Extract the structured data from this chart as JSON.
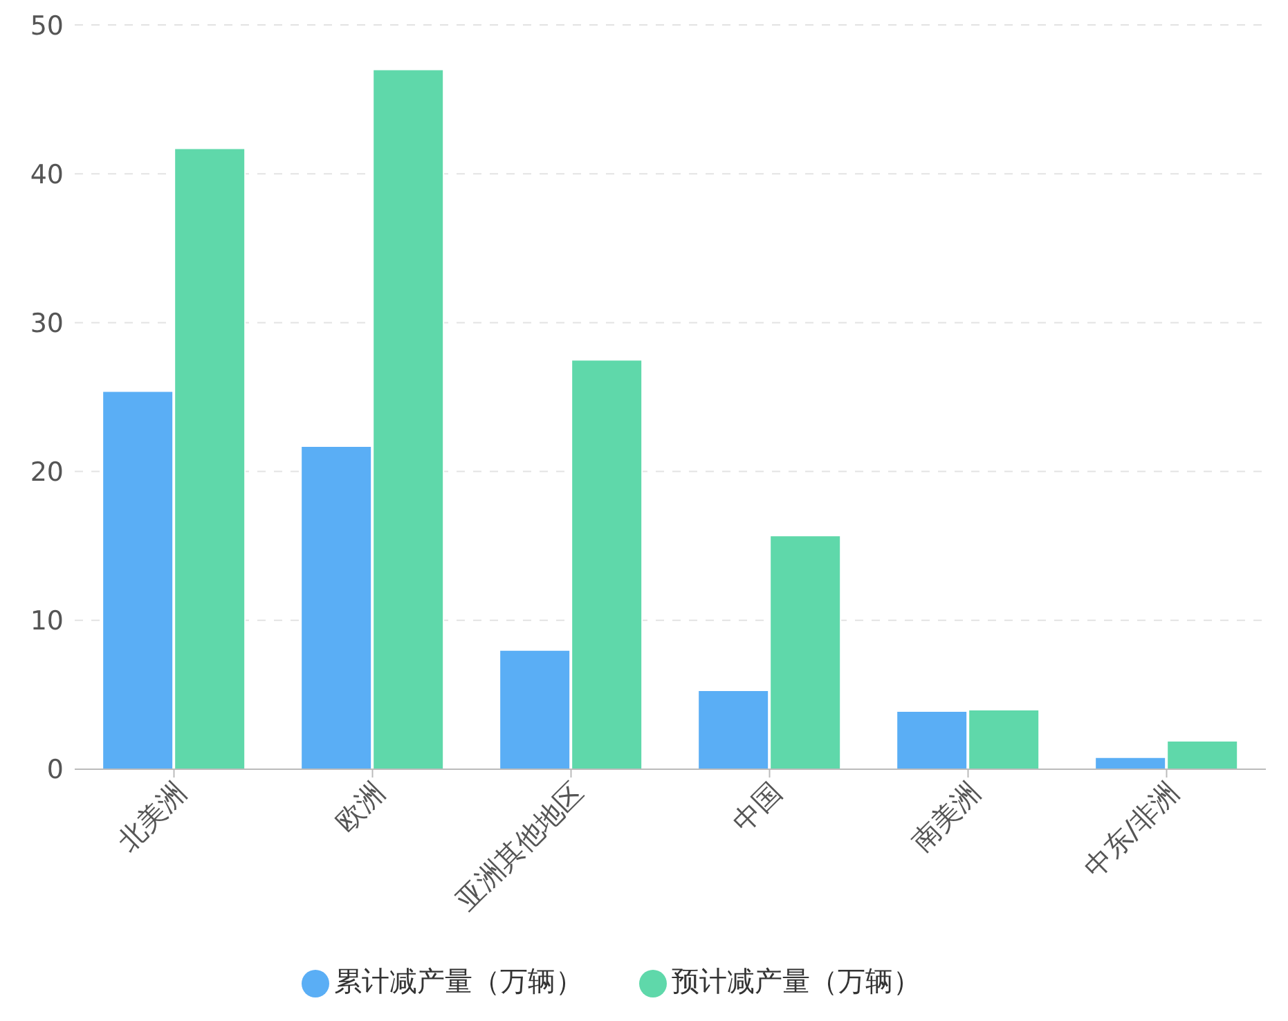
{
  "chart_data": {
    "type": "bar",
    "categories": [
      "北美洲",
      "欧洲",
      "亚洲其他地区",
      "中国",
      "南美洲",
      "中东/非洲"
    ],
    "series": [
      {
        "name": "累计减产量（万辆）",
        "color": "#5aaef5",
        "values": [
          25.4,
          21.7,
          8.0,
          5.3,
          3.9,
          0.8
        ]
      },
      {
        "name": "预计减产量（万辆）",
        "color": "#5fd8aa",
        "values": [
          41.7,
          47.0,
          27.5,
          15.7,
          4.0,
          1.9
        ]
      }
    ],
    "ylim": [
      0,
      50
    ],
    "yticks": [
      0,
      10,
      20,
      30,
      40,
      50
    ],
    "grid": "y",
    "legend": "bottom"
  }
}
